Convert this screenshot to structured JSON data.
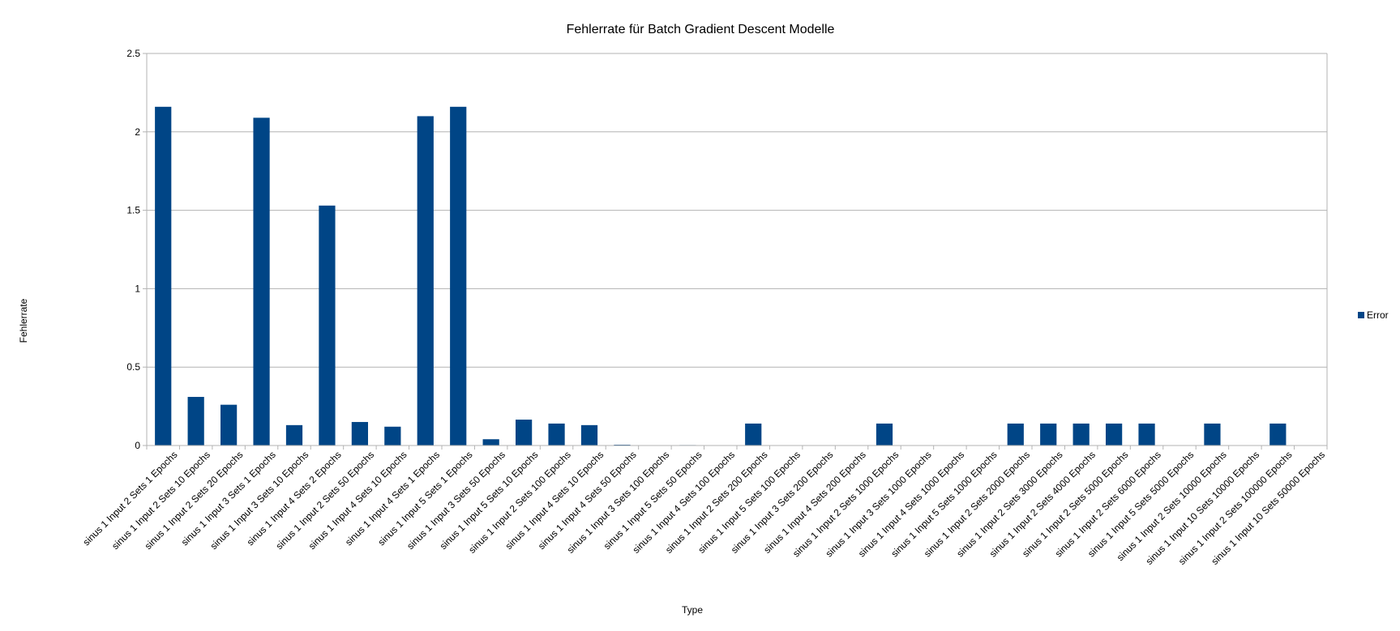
{
  "chart_data": {
    "type": "bar",
    "title": "Fehlerrate für Batch Gradient Descent Modelle",
    "xlabel": "Type",
    "ylabel": "Fehlerrate",
    "ylim": [
      0,
      2.5
    ],
    "yticks": [
      "0",
      "0.5",
      "1",
      "1.5",
      "2",
      "2.5"
    ],
    "grid": true,
    "legend_position": "right",
    "categories": [
      "sinus 1 Input 2 Sets 1 Epochs",
      "sinus 1 Input 2 Sets 10 Epochs",
      "sinus 1 Input 2 Sets 20 Epochs",
      "sinus 1 Input 3 Sets 1 Epochs",
      "sinus 1 Input 3 Sets 10 Epochs",
      "sinus 1 Input 4 Sets 2 Epochs",
      "sinus 1 Input 2 Sets 50 Epochs",
      "sinus 1 Input 4 Sets 10 Epochs",
      "sinus 1 Input 4 Sets 1 Epochs",
      "sinus 1 Input 5 Sets 1 Epochs",
      "sinus 1 Input 3 Sets 50 Epochs",
      "sinus 1 Input 5 Sets 10 Epochs",
      "sinus 1 Input 2 Sets 100 Epochs",
      "sinus 1 Input 4 Sets 10 Epochs",
      "sinus 1 Input 4 Sets 50 Epochs",
      "sinus 1 Input 3 Sets 100 Epochs",
      "sinus 1 Input 5 Sets 50 Epochs",
      "sinus 1 Input 4 Sets 100 Epochs",
      "sinus 1 Input 2 Sets 200 Epochs",
      "sinus 1 Input 5 Sets 100 Epochs",
      "sinus 1 Input 3 Sets 200 Epochs",
      "sinus 1 Input 4 Sets 200 Epochs",
      "sinus 1 Input 2 Sets 1000 Epochs",
      "sinus 1 Input 3 Sets 1000 Epochs",
      "sinus 1 Input 4 Sets 1000 Epochs",
      "sinus 1 Input 5 Sets 1000 Epochs",
      "sinus 1 Input 2 Sets 2000 Epochs",
      "sinus 1 Input 2 Sets 3000 Epochs",
      "sinus 1 Input 2 Sets 4000 Epochs",
      "sinus 1 Input 2 Sets 5000 Epochs",
      "sinus 1 Input 2 Sets 6000 Epochs",
      "sinus 1 Input 5 Sets 5000 Epochs",
      "sinus 1 Input 2 Sets 10000 Epochs",
      "sinus 1 Input 10 Sets 10000 Epochs",
      "sinus 1 Input 2 Sets 100000 Epochs",
      "sinus 1 Input 10 Sets 50000 Epochs"
    ],
    "series": [
      {
        "name": "Error",
        "color": "#004586",
        "values": [
          2.16,
          0.31,
          0.26,
          2.09,
          0.13,
          1.53,
          0.15,
          0.12,
          2.1,
          2.16,
          0.04,
          0.165,
          0.14,
          0.13,
          0.005,
          0.001,
          0.003,
          0.001,
          0.14,
          0,
          0,
          0,
          0.14,
          0,
          0,
          0,
          0.14,
          0.14,
          0.14,
          0.14,
          0.14,
          0,
          0.14,
          0,
          0.14,
          0
        ]
      }
    ]
  }
}
